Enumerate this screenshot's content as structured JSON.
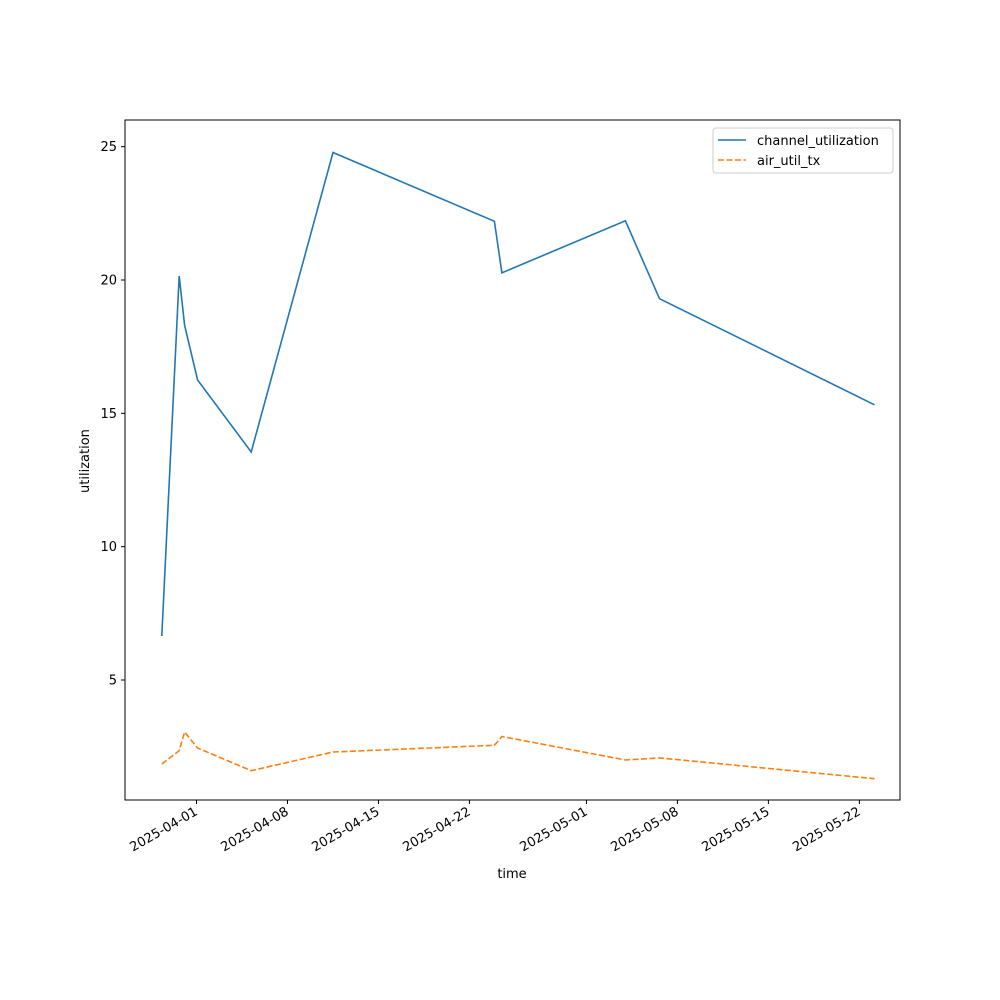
{
  "chart_data": {
    "type": "line",
    "title": "",
    "xlabel": "time",
    "ylabel": "utilization",
    "x_ticks": [
      "2025-04-01",
      "2025-04-08",
      "2025-04-15",
      "2025-04-22",
      "2025-05-01",
      "2025-05-08",
      "2025-05-15",
      "2025-05-22"
    ],
    "y_ticks": [
      5,
      10,
      15,
      20,
      25
    ],
    "xlim": [
      "2025-03-26 12:00",
      "2025-05-25 03:00"
    ],
    "ylim": [
      0.5,
      26.0
    ],
    "grid": false,
    "legend_position": "top-right",
    "series": [
      {
        "name": "channel_utilization",
        "color": "#1f77b4",
        "dash": "solid",
        "points": [
          {
            "x": "2025-03-29 08:00",
            "y": 6.65
          },
          {
            "x": "2025-03-30 16:00",
            "y": 20.15
          },
          {
            "x": "2025-03-31 02:00",
            "y": 18.3
          },
          {
            "x": "2025-04-01 02:00",
            "y": 16.25
          },
          {
            "x": "2025-04-05 05:00",
            "y": 13.55
          },
          {
            "x": "2025-04-11 12:00",
            "y": 24.78
          },
          {
            "x": "2025-04-23 22:00",
            "y": 22.2
          },
          {
            "x": "2025-04-24 12:00",
            "y": 20.27
          },
          {
            "x": "2025-05-04 00:00",
            "y": 22.22
          },
          {
            "x": "2025-05-06 15:00",
            "y": 19.3
          },
          {
            "x": "2025-05-23 04:00",
            "y": 15.32
          }
        ]
      },
      {
        "name": "air_util_tx",
        "color": "#ff7f0e",
        "dash": "dashed",
        "points": [
          {
            "x": "2025-03-29 08:00",
            "y": 1.85
          },
          {
            "x": "2025-03-30 16:00",
            "y": 2.35
          },
          {
            "x": "2025-03-31 02:00",
            "y": 3.05
          },
          {
            "x": "2025-04-01 02:00",
            "y": 2.45
          },
          {
            "x": "2025-04-05 05:00",
            "y": 1.6
          },
          {
            "x": "2025-04-11 12:00",
            "y": 2.3
          },
          {
            "x": "2025-04-23 22:00",
            "y": 2.55
          },
          {
            "x": "2025-04-24 12:00",
            "y": 2.88
          },
          {
            "x": "2025-05-04 00:00",
            "y": 2.0
          },
          {
            "x": "2025-05-06 15:00",
            "y": 2.08
          },
          {
            "x": "2025-05-23 04:00",
            "y": 1.3
          }
        ]
      }
    ]
  }
}
